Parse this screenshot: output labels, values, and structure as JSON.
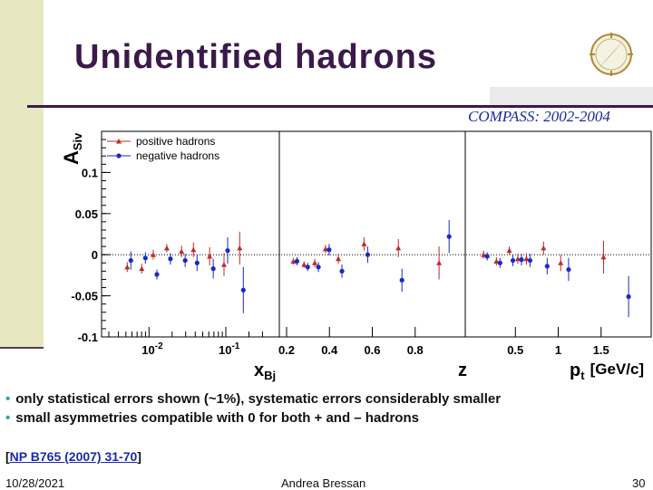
{
  "slide": {
    "title": "Unidentified hadrons",
    "experiment_label": "COMPASS: 2002-2004",
    "bullets": [
      "only statistical errors shown (~1%), systematic errors considerably smaller",
      "small asymmetries compatible with 0 for both + and – hadrons"
    ],
    "reference_open": "[",
    "reference_text": "NP B765 (2007) 31-70",
    "reference_close": "]",
    "footer_date": "10/28/2021",
    "footer_author": "Andrea Bressan",
    "footer_page": "30"
  },
  "colors": {
    "title": "#3a1a4a",
    "positive": "#c0282a",
    "negative": "#1a28c8",
    "experiment_label": "#1a2a9a"
  },
  "chart_data": {
    "type": "scatter",
    "ylabel": "A",
    "ylabel_sub": "Siv",
    "ylim": [
      -0.1,
      0.15
    ],
    "yticks": [
      -0.1,
      -0.05,
      0,
      0.05,
      0.1
    ],
    "ytick_labels": [
      "-0.1",
      "-0.05",
      "0",
      "0.05",
      "0.1"
    ],
    "zero_line": "dotted",
    "legend": {
      "placement": "top-left",
      "entries": [
        "positive hadrons",
        "negative hadrons"
      ]
    },
    "panels": [
      {
        "xlabel": "x",
        "xlabel_sub": "Bj",
        "xscale": "log",
        "xlim": [
          0.003,
          0.4
        ],
        "ticks": [
          0.01,
          0.1
        ],
        "tick_labels": [
          "10-2",
          "10-1"
        ],
        "tick_label_main": [
          "10",
          "10"
        ],
        "tick_label_exp": [
          "-2",
          "-1"
        ],
        "series": [
          {
            "name": "positive hadrons",
            "points": [
              {
                "x": 0.0055,
                "y": -0.015,
                "err": 0.006
              },
              {
                "x": 0.0085,
                "y": -0.017,
                "err": 0.006
              },
              {
                "x": 0.012,
                "y": 0.0,
                "err": 0.006
              },
              {
                "x": 0.018,
                "y": 0.008,
                "err": 0.005
              },
              {
                "x": 0.028,
                "y": 0.004,
                "err": 0.007
              },
              {
                "x": 0.04,
                "y": 0.006,
                "err": 0.009
              },
              {
                "x": 0.065,
                "y": -0.002,
                "err": 0.011
              },
              {
                "x": 0.1,
                "y": -0.012,
                "err": 0.014
              },
              {
                "x": 0.16,
                "y": 0.008,
                "err": 0.02
              }
            ]
          },
          {
            "name": "negative hadrons",
            "points": [
              {
                "x": 0.0055,
                "y": -0.007,
                "err": 0.011
              },
              {
                "x": 0.0085,
                "y": -0.004,
                "err": 0.007
              },
              {
                "x": 0.012,
                "y": -0.024,
                "err": 0.006
              },
              {
                "x": 0.018,
                "y": -0.005,
                "err": 0.007
              },
              {
                "x": 0.028,
                "y": -0.007,
                "err": 0.008
              },
              {
                "x": 0.04,
                "y": -0.01,
                "err": 0.01
              },
              {
                "x": 0.065,
                "y": -0.017,
                "err": 0.012
              },
              {
                "x": 0.1,
                "y": 0.005,
                "err": 0.016
              },
              {
                "x": 0.16,
                "y": -0.043,
                "err": 0.028
              }
            ]
          }
        ]
      },
      {
        "xlabel": "z",
        "xscale": "linear",
        "xlim": [
          0.2,
          1.0
        ],
        "ticks": [
          0.2,
          0.4,
          0.6,
          0.8
        ],
        "tick_labels": [
          "0.2",
          "0.4",
          "0.6",
          "0.8"
        ],
        "series": [
          {
            "name": "positive hadrons",
            "points": [
              {
                "x": 0.24,
                "y": -0.008,
                "err": 0.004
              },
              {
                "x": 0.29,
                "y": -0.012,
                "err": 0.004
              },
              {
                "x": 0.34,
                "y": -0.01,
                "err": 0.005
              },
              {
                "x": 0.39,
                "y": 0.007,
                "err": 0.005
              },
              {
                "x": 0.45,
                "y": -0.005,
                "err": 0.006
              },
              {
                "x": 0.57,
                "y": 0.013,
                "err": 0.008
              },
              {
                "x": 0.73,
                "y": 0.008,
                "err": 0.011
              },
              {
                "x": 0.92,
                "y": -0.01,
                "err": 0.02
              }
            ]
          },
          {
            "name": "negative hadrons",
            "points": [
              {
                "x": 0.24,
                "y": -0.008,
                "err": 0.005
              },
              {
                "x": 0.29,
                "y": -0.015,
                "err": 0.005
              },
              {
                "x": 0.34,
                "y": -0.015,
                "err": 0.006
              },
              {
                "x": 0.39,
                "y": 0.006,
                "err": 0.007
              },
              {
                "x": 0.45,
                "y": -0.02,
                "err": 0.008
              },
              {
                "x": 0.57,
                "y": 0.0,
                "err": 0.01
              },
              {
                "x": 0.73,
                "y": -0.031,
                "err": 0.014
              },
              {
                "x": 0.95,
                "y": 0.022,
                "err": 0.02
              }
            ]
          }
        ]
      },
      {
        "xlabel": "p",
        "xlabel_sub": "t",
        "xlabel_unit": "[GeV/c]",
        "xscale": "linear",
        "xlim": [
          0.0,
          2.0
        ],
        "ticks": [
          0.5,
          1.0,
          1.5
        ],
        "tick_labels": [
          "0.5",
          "1",
          "1.5"
        ],
        "series": [
          {
            "name": "positive hadrons",
            "points": [
              {
                "x": 0.15,
                "y": 0.0,
                "err": 0.005
              },
              {
                "x": 0.3,
                "y": -0.008,
                "err": 0.005
              },
              {
                "x": 0.45,
                "y": 0.005,
                "err": 0.005
              },
              {
                "x": 0.55,
                "y": -0.005,
                "err": 0.006
              },
              {
                "x": 0.65,
                "y": -0.005,
                "err": 0.007
              },
              {
                "x": 0.85,
                "y": 0.008,
                "err": 0.008
              },
              {
                "x": 1.05,
                "y": -0.01,
                "err": 0.01
              },
              {
                "x": 1.55,
                "y": -0.003,
                "err": 0.02
              }
            ]
          },
          {
            "name": "negative hadrons",
            "points": [
              {
                "x": 0.15,
                "y": -0.002,
                "err": 0.005
              },
              {
                "x": 0.3,
                "y": -0.01,
                "err": 0.006
              },
              {
                "x": 0.45,
                "y": -0.007,
                "err": 0.007
              },
              {
                "x": 0.55,
                "y": -0.006,
                "err": 0.007
              },
              {
                "x": 0.65,
                "y": -0.007,
                "err": 0.008
              },
              {
                "x": 0.85,
                "y": -0.014,
                "err": 0.01
              },
              {
                "x": 1.1,
                "y": -0.018,
                "err": 0.014
              },
              {
                "x": 1.8,
                "y": -0.051,
                "err": 0.025
              }
            ]
          }
        ]
      }
    ]
  }
}
